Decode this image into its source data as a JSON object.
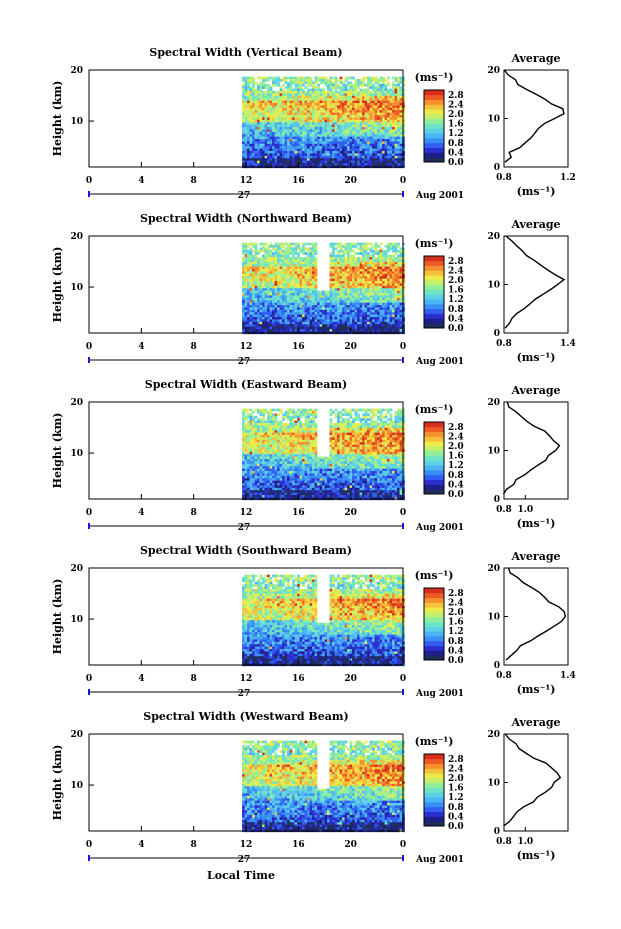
{
  "colors": {
    "colormap": [
      "#1e2d5a",
      "#1f1f8c",
      "#2b2fd0",
      "#2f5ef0",
      "#3a8df5",
      "#4cb3f5",
      "#5fd1e6",
      "#6fe3c4",
      "#8fef9a",
      "#c2f06e",
      "#eceb4a",
      "#f6c13a",
      "#f5902f",
      "#ee5a26",
      "#d62f1e"
    ],
    "line": "#000000",
    "axis_accent": "#1a1ad0"
  },
  "chart_data": [
    {
      "type": "heatmap",
      "title": "Spectral Width (Vertical Beam)",
      "ylabel": "Height (km)",
      "x_ticks": [
        "0",
        "4",
        "8",
        "12",
        "16",
        "20",
        "0"
      ],
      "y_ticks": [
        "20",
        "10"
      ],
      "xlim": [
        0,
        24
      ],
      "ylim": [
        1,
        20
      ],
      "data_start_hour": 11.7,
      "gap_hours": [],
      "date_label": "27",
      "month_label": "Aug 2001",
      "colorbar": {
        "unit": "(ms⁻¹)",
        "ticks": [
          "2.8",
          "2.4",
          "2.0",
          "1.6",
          "1.2",
          "0.8",
          "0.4",
          "0.0"
        ],
        "range": [
          0,
          3.0
        ]
      },
      "average": {
        "title": "Average",
        "xlabel": "(ms⁻¹)",
        "x_ticks": [
          "0.8",
          "1.2"
        ],
        "y_ticks": [
          "20",
          "10",
          "0"
        ],
        "xlim": [
          0.8,
          1.2
        ],
        "profile": [
          [
            1,
            0.81
          ],
          [
            2,
            0.84
          ],
          [
            3,
            0.85
          ],
          [
            4,
            0.88
          ],
          [
            5,
            0.92
          ],
          [
            6,
            0.95
          ],
          [
            7,
            0.98
          ],
          [
            8,
            1.02
          ],
          [
            9,
            1.07
          ],
          [
            10,
            1.12
          ],
          [
            11,
            1.16
          ],
          [
            12,
            1.15
          ],
          [
            13,
            1.1
          ],
          [
            14,
            1.05
          ],
          [
            15,
            1.0
          ],
          [
            16,
            0.95
          ],
          [
            17,
            0.9
          ],
          [
            18,
            0.86
          ],
          [
            19,
            0.82
          ],
          [
            20,
            0.8
          ]
        ]
      }
    },
    {
      "type": "heatmap",
      "title": "Spectral Width (Northward Beam)",
      "ylabel": "Height (km)",
      "x_ticks": [
        "0",
        "4",
        "8",
        "12",
        "16",
        "20",
        "0"
      ],
      "y_ticks": [
        "20",
        "10"
      ],
      "xlim": [
        0,
        24
      ],
      "ylim": [
        1,
        20
      ],
      "data_start_hour": 11.7,
      "gap_hours": [
        17.6,
        18.2
      ],
      "date_label": "27",
      "month_label": "Aug 2001",
      "colorbar": {
        "unit": "(ms⁻¹)",
        "ticks": [
          "2.8",
          "2.4",
          "2.0",
          "1.6",
          "1.2",
          "0.8",
          "0.4",
          "0.0"
        ],
        "range": [
          0,
          3.0
        ]
      },
      "average": {
        "title": "Average",
        "xlabel": "(ms⁻¹)",
        "x_ticks": [
          "0.8",
          "1.4"
        ],
        "y_ticks": [
          "20",
          "10",
          "0"
        ],
        "xlim": [
          0.8,
          1.4
        ],
        "profile": [
          [
            1,
            0.82
          ],
          [
            2,
            0.85
          ],
          [
            3,
            0.88
          ],
          [
            4,
            0.92
          ],
          [
            5,
            0.98
          ],
          [
            6,
            1.03
          ],
          [
            7,
            1.1
          ],
          [
            8,
            1.18
          ],
          [
            9,
            1.25
          ],
          [
            10,
            1.32
          ],
          [
            11,
            1.38
          ],
          [
            12,
            1.3
          ],
          [
            13,
            1.22
          ],
          [
            14,
            1.15
          ],
          [
            15,
            1.08
          ],
          [
            16,
            1.02
          ],
          [
            17,
            0.96
          ],
          [
            18,
            0.9
          ],
          [
            19,
            0.86
          ],
          [
            20,
            0.82
          ]
        ]
      }
    },
    {
      "type": "heatmap",
      "title": "Spectral Width (Eastward Beam)",
      "ylabel": "Height (km)",
      "x_ticks": [
        "0",
        "4",
        "8",
        "12",
        "16",
        "20",
        "0"
      ],
      "y_ticks": [
        "20",
        "10"
      ],
      "xlim": [
        0,
        24
      ],
      "ylim": [
        1,
        20
      ],
      "data_start_hour": 11.7,
      "gap_hours": [
        17.6,
        18.2
      ],
      "date_label": "27",
      "month_label": "Aug 2001",
      "colorbar": {
        "unit": "(ms⁻¹)",
        "ticks": [
          "2.8",
          "2.4",
          "2.0",
          "1.6",
          "1.2",
          "0.8",
          "0.4",
          "0.0"
        ],
        "range": [
          0,
          3.0
        ]
      },
      "average": {
        "title": "Average",
        "xlabel": "(ms⁻¹)",
        "x_ticks": [
          "0.8",
          "1.0"
        ],
        "y_ticks": [
          "20",
          "10",
          "0"
        ],
        "xlim": [
          0.8,
          1.4
        ],
        "profile": [
          [
            1,
            0.81
          ],
          [
            2,
            0.84
          ],
          [
            3,
            0.88
          ],
          [
            4,
            0.93
          ],
          [
            5,
            1.0
          ],
          [
            6,
            1.06
          ],
          [
            7,
            1.12
          ],
          [
            8,
            1.18
          ],
          [
            9,
            1.22
          ],
          [
            10,
            1.27
          ],
          [
            11,
            1.3
          ],
          [
            12,
            1.28
          ],
          [
            13,
            1.24
          ],
          [
            14,
            1.18
          ],
          [
            15,
            1.1
          ],
          [
            16,
            1.02
          ],
          [
            17,
            0.95
          ],
          [
            18,
            0.9
          ],
          [
            19,
            0.86
          ],
          [
            20,
            0.83
          ]
        ]
      }
    },
    {
      "type": "heatmap",
      "title": "Spectral Width (Southward Beam)",
      "ylabel": "Height (km)",
      "x_ticks": [
        "0",
        "4",
        "8",
        "12",
        "16",
        "20",
        "0"
      ],
      "y_ticks": [
        "20",
        "10"
      ],
      "xlim": [
        0,
        24
      ],
      "ylim": [
        1,
        20
      ],
      "data_start_hour": 11.7,
      "gap_hours": [
        17.6,
        18.2
      ],
      "date_label": "27",
      "month_label": "Aug 2001",
      "colorbar": {
        "unit": "(ms⁻¹)",
        "ticks": [
          "2.8",
          "2.4",
          "2.0",
          "1.6",
          "1.2",
          "0.8",
          "0.4",
          "0.0"
        ],
        "range": [
          0,
          3.0
        ]
      },
      "average": {
        "title": "Average",
        "xlabel": "(ms⁻¹)",
        "x_ticks": [
          "0.8",
          "1.4"
        ],
        "y_ticks": [
          "20",
          "10",
          "0"
        ],
        "xlim": [
          0.8,
          1.4
        ],
        "profile": [
          [
            1,
            0.82
          ],
          [
            2,
            0.86
          ],
          [
            3,
            0.9
          ],
          [
            4,
            0.96
          ],
          [
            5,
            1.04
          ],
          [
            6,
            1.12
          ],
          [
            7,
            1.2
          ],
          [
            8,
            1.27
          ],
          [
            9,
            1.32
          ],
          [
            10,
            1.36
          ],
          [
            11,
            1.35
          ],
          [
            12,
            1.3
          ],
          [
            13,
            1.24
          ],
          [
            14,
            1.18
          ],
          [
            15,
            1.12
          ],
          [
            16,
            1.05
          ],
          [
            17,
            0.98
          ],
          [
            18,
            0.92
          ],
          [
            19,
            0.87
          ],
          [
            20,
            0.84
          ]
        ]
      }
    },
    {
      "type": "heatmap",
      "title": "Spectral Width (Westward Beam)",
      "ylabel": "Height (km)",
      "x_ticks": [
        "0",
        "4",
        "8",
        "12",
        "16",
        "20",
        "0"
      ],
      "y_ticks": [
        "20",
        "10"
      ],
      "xlim": [
        0,
        24
      ],
      "ylim": [
        1,
        20
      ],
      "data_start_hour": 11.7,
      "gap_hours": [
        17.6,
        18.2
      ],
      "date_label": "27",
      "month_label": "Aug 2001",
      "colorbar": {
        "unit": "(ms⁻¹)",
        "ticks": [
          "2.8",
          "2.4",
          "2.0",
          "1.6",
          "1.2",
          "0.8",
          "0.4",
          "0.0"
        ],
        "range": [
          0,
          3.0
        ]
      },
      "average": {
        "title": "Average",
        "xlabel": "(ms⁻¹)",
        "x_ticks": [
          "0.8",
          "1.0"
        ],
        "y_ticks": [
          "20",
          "10",
          "0"
        ],
        "xlim": [
          0.8,
          1.4
        ],
        "profile": [
          [
            1,
            0.81
          ],
          [
            2,
            0.85
          ],
          [
            3,
            0.89
          ],
          [
            4,
            0.94
          ],
          [
            5,
            1.0
          ],
          [
            6,
            1.06
          ],
          [
            7,
            1.12
          ],
          [
            8,
            1.18
          ],
          [
            9,
            1.23
          ],
          [
            10,
            1.28
          ],
          [
            11,
            1.32
          ],
          [
            12,
            1.3
          ],
          [
            13,
            1.25
          ],
          [
            14,
            1.18
          ],
          [
            15,
            1.1
          ],
          [
            16,
            1.02
          ],
          [
            17,
            0.95
          ],
          [
            18,
            0.9
          ],
          [
            19,
            0.86
          ],
          [
            20,
            0.83
          ]
        ]
      }
    }
  ],
  "footer": {
    "xlabel": "Local Time"
  }
}
